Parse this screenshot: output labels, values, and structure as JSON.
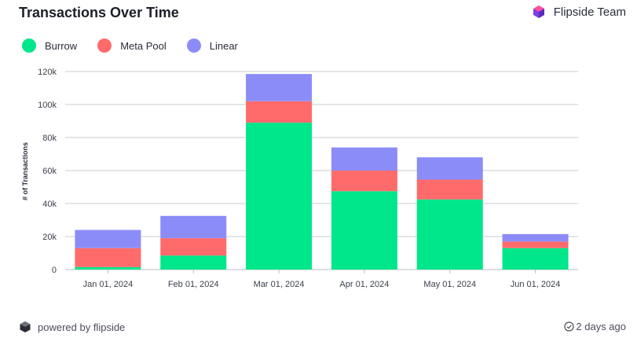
{
  "header": {
    "title": "Transactions Over Time",
    "team": "Flipside Team"
  },
  "footer": {
    "powered": "powered by flipside",
    "updated": "2 days ago"
  },
  "colors": {
    "Burrow": "#00e68a",
    "Meta Pool": "#ff6b6b",
    "Linear": "#8c8cf8"
  },
  "chart_data": {
    "type": "bar",
    "stacked": true,
    "categories": [
      "Jan 01, 2024",
      "Feb 01, 2024",
      "Mar 01, 2024",
      "Apr 01, 2024",
      "May 01, 2024",
      "Jun 01, 2024"
    ],
    "series": [
      {
        "name": "Burrow",
        "values": [
          1500,
          8500,
          89000,
          47500,
          42500,
          13000
        ]
      },
      {
        "name": "Meta Pool",
        "values": [
          11500,
          10500,
          13000,
          12500,
          12000,
          4000
        ]
      },
      {
        "name": "Linear",
        "values": [
          11000,
          13500,
          16500,
          14000,
          13500,
          4500
        ]
      }
    ],
    "ylabel": "# of Transactions",
    "ylim": [
      0,
      120000
    ],
    "yticks": [
      "0",
      "20k",
      "40k",
      "60k",
      "80k",
      "100k",
      "120k"
    ],
    "grid": true,
    "legend": "top-left"
  }
}
